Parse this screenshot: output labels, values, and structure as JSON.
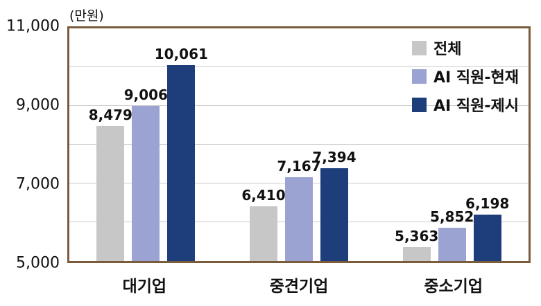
{
  "colors": {
    "frame": "#7a5c3c",
    "gridline": "#cccccc",
    "text": "#111111"
  },
  "chart_data": {
    "type": "bar",
    "title": "",
    "ylabel": "(만원)",
    "categories": [
      "대기업",
      "중견기업",
      "중소기업"
    ],
    "series": [
      {
        "name": "전체",
        "color": "#c7c7c7",
        "values": [
          8479,
          6410,
          5363
        ]
      },
      {
        "name": "AI 직원-현재",
        "color": "#9aa3d2",
        "values": [
          9006,
          7167,
          5852
        ]
      },
      {
        "name": "AI 직원-제시",
        "color": "#1e3d7b",
        "values": [
          10061,
          7394,
          6198
        ]
      }
    ],
    "ylim": [
      5000,
      11000
    ],
    "yticks": [
      5000,
      7000,
      9000,
      11000
    ],
    "ytick_labels": [
      "5,000",
      "7,000",
      "9,000",
      "11,000"
    ],
    "gridlines": [
      6000,
      7000,
      8000,
      9000,
      10000
    ],
    "grid": true,
    "legend_position": "top-right",
    "value_labels": true
  }
}
